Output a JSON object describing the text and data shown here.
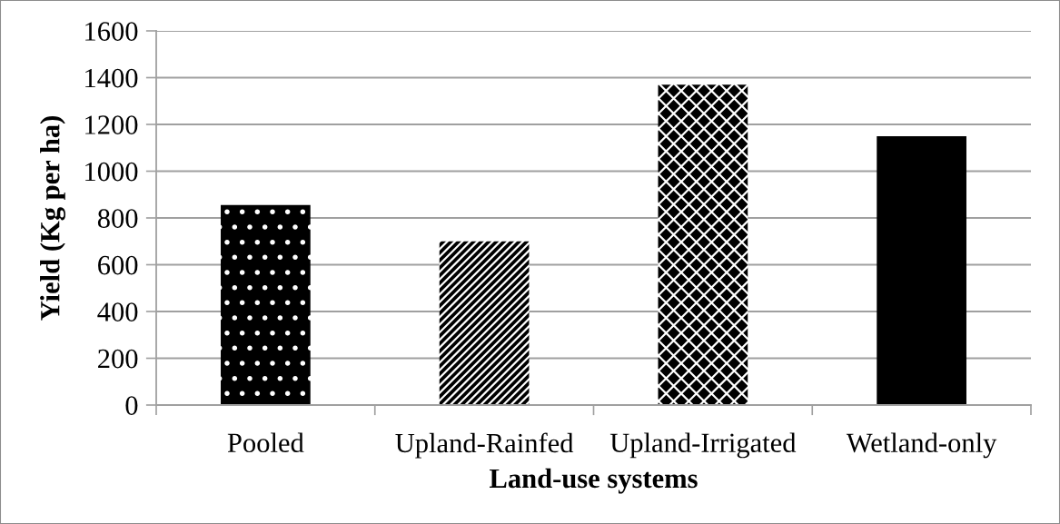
{
  "chart_data": {
    "type": "bar",
    "xlabel": "Land-use systems",
    "ylabel": "Yield (Kg per ha)",
    "categories": [
      "Pooled",
      "Upland-Rainfed",
      "Upland-Irrigated",
      "Wetland-only"
    ],
    "values": [
      855,
      700,
      1370,
      1150
    ],
    "colors": [
      "#000000",
      "#000000",
      "#000000",
      "#000000"
    ],
    "ylim": [
      0,
      1600
    ],
    "yticks": [
      0,
      200,
      400,
      600,
      800,
      1000,
      1200,
      1400,
      1600
    ],
    "grid": "y",
    "legend": false
  }
}
